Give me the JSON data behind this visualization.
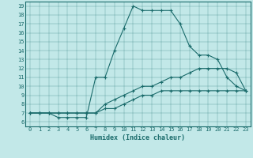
{
  "xlabel": "Humidex (Indice chaleur)",
  "background_color": "#c2e8e8",
  "line_color": "#1a6b6b",
  "xlim": [
    -0.5,
    23.5
  ],
  "ylim": [
    5.5,
    19.5
  ],
  "xticks": [
    0,
    1,
    2,
    3,
    4,
    5,
    6,
    7,
    8,
    9,
    10,
    11,
    12,
    13,
    14,
    15,
    16,
    17,
    18,
    19,
    20,
    21,
    22,
    23
  ],
  "yticks": [
    6,
    7,
    8,
    9,
    10,
    11,
    12,
    13,
    14,
    15,
    16,
    17,
    18,
    19
  ],
  "series": [
    {
      "x": [
        0,
        1,
        2,
        3,
        4,
        5,
        6,
        7,
        8,
        9,
        10,
        11,
        12,
        13,
        14,
        15,
        16,
        17,
        18,
        19,
        20,
        21,
        22,
        23
      ],
      "y": [
        7,
        7,
        7,
        6.5,
        6.5,
        6.5,
        6.5,
        11,
        11,
        14,
        16.5,
        19,
        18.5,
        18.5,
        18.5,
        18.5,
        17,
        14.5,
        13.5,
        13.5,
        13,
        11,
        10,
        9.5
      ]
    },
    {
      "x": [
        0,
        1,
        2,
        3,
        4,
        5,
        6,
        7,
        8,
        9,
        10,
        11,
        12,
        13,
        14,
        15,
        16,
        17,
        18,
        19,
        20,
        21,
        22,
        23
      ],
      "y": [
        7,
        7,
        7,
        7,
        7,
        7,
        7,
        7,
        8,
        8.5,
        9,
        9.5,
        10,
        10,
        10.5,
        11,
        11,
        11.5,
        12,
        12,
        12,
        12,
        11.5,
        9.5
      ]
    },
    {
      "x": [
        0,
        1,
        2,
        3,
        4,
        5,
        6,
        7,
        8,
        9,
        10,
        11,
        12,
        13,
        14,
        15,
        16,
        17,
        18,
        19,
        20,
        21,
        22,
        23
      ],
      "y": [
        7,
        7,
        7,
        7,
        7,
        7,
        7,
        7,
        7.5,
        7.5,
        8,
        8.5,
        9,
        9,
        9.5,
        9.5,
        9.5,
        9.5,
        9.5,
        9.5,
        9.5,
        9.5,
        9.5,
        9.5
      ]
    }
  ]
}
